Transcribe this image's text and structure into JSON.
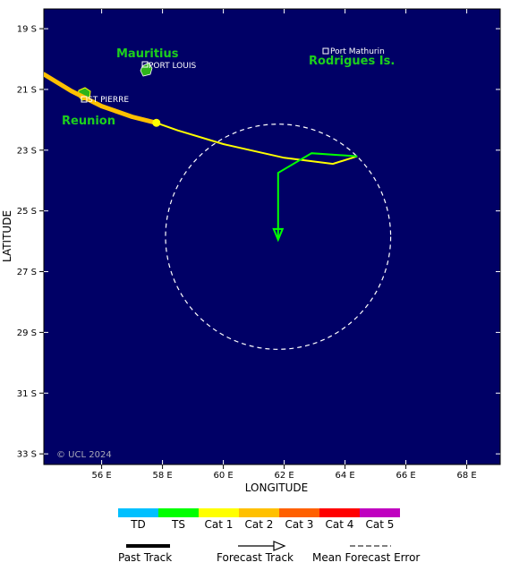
{
  "map": {
    "background": "#000066",
    "lon_range": [
      54.1,
      69.1
    ],
    "lat_range": [
      18.35,
      33.35
    ],
    "x_ticks": [
      "56 E",
      "58 E",
      "60 E",
      "62 E",
      "64 E",
      "66 E",
      "68 E"
    ],
    "x_tick_values": [
      56,
      58,
      60,
      62,
      64,
      66,
      68
    ],
    "y_ticks": [
      "19 S",
      "21 S",
      "23 S",
      "25 S",
      "27 S",
      "29 S",
      "31 S",
      "33 S"
    ],
    "y_tick_values": [
      19,
      21,
      23,
      25,
      27,
      29,
      31,
      33
    ],
    "xlabel": "LONGITUDE",
    "ylabel": "LATITUDE",
    "copyright": "© UCL 2024"
  },
  "places": {
    "mauritius": "Mauritius",
    "port_louis": "PORT LOUIS",
    "reunion": "Reunion",
    "st_pierre": "ST PIERRE",
    "port_mathurin": "Port Mathurin",
    "rodrigues": "Rodrigues Is."
  },
  "track": {
    "past": [
      [
        54.1,
        20.5
      ],
      [
        55.0,
        21.05
      ],
      [
        56.0,
        21.55
      ],
      [
        57.0,
        21.9
      ],
      [
        57.8,
        22.1
      ]
    ],
    "past_color": "#ffc000",
    "forecast_cat1": [
      [
        57.8,
        22.1
      ],
      [
        58.5,
        22.35
      ],
      [
        60.0,
        22.8
      ],
      [
        62.0,
        23.25
      ],
      [
        63.6,
        23.45
      ],
      [
        64.4,
        23.2
      ]
    ],
    "forecast_cat1_color": "#ffff00",
    "forecast_ts": [
      [
        64.4,
        23.2
      ],
      [
        62.9,
        23.1
      ],
      [
        61.8,
        23.75
      ],
      [
        61.8,
        25.95
      ]
    ],
    "forecast_ts_color": "#00ff00",
    "current_position": [
      57.8,
      22.1
    ],
    "error_circle": {
      "center": [
        61.8,
        25.85
      ],
      "radius_deg": 3.7
    }
  },
  "legend": {
    "scale": [
      {
        "label": "TD",
        "color": "#00c0ff"
      },
      {
        "label": "TS",
        "color": "#00ff00"
      },
      {
        "label": "Cat 1",
        "color": "#ffff00"
      },
      {
        "label": "Cat 2",
        "color": "#ffc000"
      },
      {
        "label": "Cat 3",
        "color": "#ff6000"
      },
      {
        "label": "Cat 4",
        "color": "#ff0000"
      },
      {
        "label": "Cat 5",
        "color": "#c000c0"
      }
    ],
    "past_track": "Past Track",
    "forecast_track": "Forecast Track",
    "mean_error": "Mean Forecast Error"
  }
}
